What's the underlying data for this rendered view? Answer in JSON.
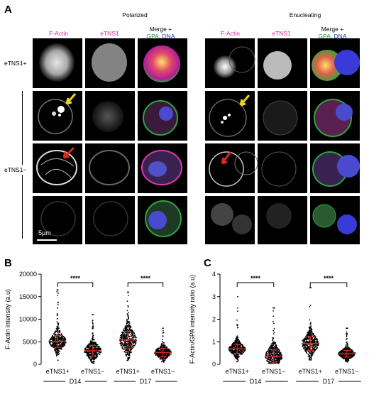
{
  "panel_labels": {
    "a": "A",
    "b": "B",
    "c": "C"
  },
  "panel_a": {
    "groups": [
      {
        "title": "Polarized",
        "columns": [
          {
            "parts": [
              {
                "text": "F-Actin",
                "color": "#d6279a"
              }
            ]
          },
          {
            "parts": [
              {
                "text": "eTNS1",
                "color": "#d6279a"
              }
            ]
          },
          {
            "parts": [
              {
                "text": "Merge +",
                "color": "#000000"
              }
            ]
          }
        ],
        "merge_sub": [
          {
            "text": "GPA",
            "color": "#1a9a3a"
          },
          {
            "text": ", ",
            "color": "#000000"
          },
          {
            "text": "DNA",
            "color": "#2233cc"
          }
        ]
      },
      {
        "title": "Enucleating",
        "columns": [
          {
            "parts": [
              {
                "text": "F-Actin",
                "color": "#d6279a"
              }
            ]
          },
          {
            "parts": [
              {
                "text": "eTNS1",
                "color": "#d6279a"
              }
            ]
          },
          {
            "parts": [
              {
                "text": "Merge +",
                "color": "#000000"
              }
            ]
          }
        ],
        "merge_sub": [
          {
            "text": "GPA",
            "color": "#1a9a3a"
          },
          {
            "text": ", ",
            "color": "#000000"
          },
          {
            "text": "DNA",
            "color": "#2233cc"
          }
        ]
      }
    ],
    "row_labels": {
      "plus": "eTNS1+",
      "minus": "eTNS1−"
    },
    "scale_bar": "5μm",
    "arrow_colors": {
      "yellow": "#f2d21b",
      "red": "#e0261f"
    }
  },
  "chart_data": [
    {
      "type": "scatter",
      "panel": "B",
      "ylabel": "F-Actin intensity (a.u)",
      "ylim": [
        0,
        20000
      ],
      "yticks": [
        0,
        5000,
        10000,
        15000,
        20000
      ],
      "ytick_labels": [
        "0",
        "5000",
        "10000",
        "15000",
        "20000"
      ],
      "categories": [
        "eTNS1+",
        "eTNS1−",
        "eTNS1+",
        "eTNS1−"
      ],
      "groups": [
        "D14",
        "D17"
      ],
      "series": [
        {
          "values_mean": 5100,
          "sd": 1300,
          "max": 16500,
          "min": 900
        },
        {
          "values_mean": 3000,
          "sd": 1200,
          "max": 11000,
          "min": 300
        },
        {
          "values_mean": 5400,
          "sd": 1900,
          "max": 16000,
          "min": 900
        },
        {
          "values_mean": 2600,
          "sd": 900,
          "max": 8000,
          "min": 400
        }
      ],
      "significance": [
        "****",
        "****"
      ]
    },
    {
      "type": "scatter",
      "panel": "C",
      "ylabel": "F-Actin/GPA intensity ratio (a.u)",
      "ylim": [
        0,
        4
      ],
      "yticks": [
        0,
        1,
        2,
        3,
        4
      ],
      "ytick_labels": [
        "0",
        "1",
        "2",
        "3",
        "4"
      ],
      "categories": [
        "eTNS1+",
        "eTNS1−",
        "eTNS1+",
        "eTNS1−"
      ],
      "groups": [
        "D14",
        "D17"
      ],
      "series": [
        {
          "values_mean": 0.68,
          "sd": 0.2,
          "max": 3.0,
          "min": 0.1
        },
        {
          "values_mean": 0.36,
          "sd": 0.3,
          "max": 2.5,
          "min": 0.05
        },
        {
          "values_mean": 0.92,
          "sd": 0.3,
          "max": 3.4,
          "min": 0.2
        },
        {
          "values_mean": 0.47,
          "sd": 0.15,
          "max": 1.6,
          "min": 0.1
        }
      ],
      "significance": [
        "****",
        "****"
      ]
    }
  ],
  "colors": {
    "points": "#000000",
    "mean_line": "#e0261f"
  }
}
